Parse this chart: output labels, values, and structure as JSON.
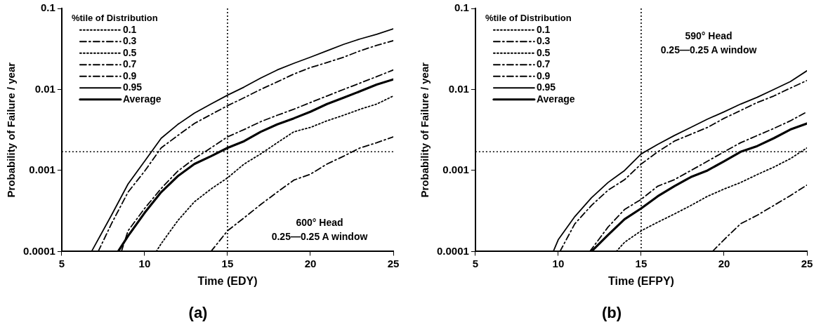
{
  "chart_data": [
    {
      "type": "line",
      "title": "(a)",
      "xlabel": "Time (EDY)",
      "ylabel": "Probability of Failure / year",
      "legend_title": "%tile of Distribution",
      "legend": "top left",
      "log": "y",
      "grid": false,
      "marker": "none",
      "xlim": [
        5,
        25
      ],
      "xticks": [
        5,
        10,
        15,
        20,
        25
      ],
      "ylim": [
        0.0001,
        0.1
      ],
      "yticks": [
        0.0001,
        0.001,
        0.01,
        0.1
      ],
      "annotations": [
        "600° Head",
        "0.25—0.25 A window"
      ],
      "ref_lines": [
        {
          "axis": "y",
          "value": 0.0017,
          "line_style": "dotted",
          "color": "#000000"
        },
        {
          "axis": "x",
          "value": 15,
          "line_style": "dotted",
          "color": "#000000"
        }
      ],
      "series": [
        {
          "name": "0.1",
          "color": "#000000",
          "line_style": "dotted"
        },
        {
          "name": "0.3",
          "color": "#000000",
          "line_style": "dashed",
          "x": [
            14,
            15,
            16,
            17,
            18,
            19,
            20,
            21,
            22,
            23,
            24,
            25
          ],
          "values": [
            0.0001,
            0.00018,
            0.00026,
            0.00038,
            0.00054,
            0.00076,
            0.0009,
            0.0012,
            0.0015,
            0.0019,
            0.0022,
            0.0026
          ]
        },
        {
          "name": "0.5",
          "color": "#000000",
          "line_style": "dotted",
          "x": [
            10.7,
            11,
            12,
            13,
            14,
            15,
            16,
            17,
            18,
            19,
            20,
            21,
            22,
            23,
            24,
            25
          ],
          "values": [
            0.0001,
            0.000125,
            0.00024,
            0.00041,
            0.00059,
            0.00081,
            0.0012,
            0.0016,
            0.0022,
            0.003,
            0.0034,
            0.0041,
            0.0048,
            0.0057,
            0.0066,
            0.0083
          ]
        },
        {
          "name": "0.7",
          "color": "#000000",
          "line_style": "dashed",
          "x": [
            8.6,
            9,
            10,
            11,
            12,
            13,
            14,
            15,
            16,
            17,
            18,
            19,
            20,
            21,
            22,
            23,
            24,
            25
          ],
          "values": [
            0.0001,
            0.00018,
            0.00034,
            0.0006,
            0.00098,
            0.0014,
            0.0019,
            0.0026,
            0.0032,
            0.004,
            0.0048,
            0.0057,
            0.0069,
            0.0083,
            0.01,
            0.012,
            0.0144,
            0.0174
          ]
        },
        {
          "name": "0.9",
          "color": "#000000",
          "line_style": "dashed",
          "x": [
            7.2,
            8,
            9,
            10,
            11,
            12,
            13,
            14,
            15,
            16,
            17,
            18,
            19,
            20,
            21,
            22,
            23,
            24,
            25
          ],
          "values": [
            0.0001,
            0.00022,
            0.00054,
            0.00098,
            0.0019,
            0.0027,
            0.0038,
            0.0049,
            0.0063,
            0.0079,
            0.01,
            0.0124,
            0.0155,
            0.0186,
            0.0215,
            0.025,
            0.03,
            0.035,
            0.04
          ]
        },
        {
          "name": "0.95",
          "color": "#000000",
          "line_style": "solid",
          "x": [
            6.8,
            8,
            9,
            10,
            11,
            12,
            13,
            14,
            15,
            16,
            17,
            18,
            19,
            20,
            21,
            22,
            23,
            24,
            25
          ],
          "values": [
            0.0001,
            0.00028,
            0.00068,
            0.0013,
            0.0025,
            0.0037,
            0.0051,
            0.0066,
            0.0085,
            0.0107,
            0.0138,
            0.0174,
            0.021,
            0.025,
            0.03,
            0.036,
            0.042,
            0.048,
            0.056
          ]
        },
        {
          "name": "Average",
          "color": "#000000",
          "line_style": "solid",
          "x": [
            8.4,
            9,
            10,
            11,
            12,
            13,
            14,
            15,
            16,
            17,
            18,
            19,
            20,
            21,
            22,
            23,
            24,
            25
          ],
          "values": [
            0.0001,
            0.000155,
            0.0003,
            0.00054,
            0.00085,
            0.0012,
            0.0015,
            0.0019,
            0.0023,
            0.003,
            0.0037,
            0.0044,
            0.0053,
            0.0066,
            0.0079,
            0.0095,
            0.0115,
            0.0133
          ]
        }
      ]
    },
    {
      "type": "line",
      "title": "(b)",
      "xlabel": "Time (EFPY)",
      "ylabel": "Probability of Failure / year",
      "legend_title": "%tile of Distribution",
      "legend": "top left",
      "log": "y",
      "grid": false,
      "marker": "none",
      "xlim": [
        5,
        25
      ],
      "xticks": [
        5,
        10,
        15,
        20,
        25
      ],
      "ylim": [
        0.0001,
        0.1
      ],
      "yticks": [
        0.0001,
        0.001,
        0.01,
        0.1
      ],
      "annotations": [
        "590° Head",
        "0.25—0.25 A window"
      ],
      "ref_lines": [
        {
          "axis": "y",
          "value": 0.0017,
          "line_style": "dotted",
          "color": "#000000"
        },
        {
          "axis": "x",
          "value": 15,
          "line_style": "dotted",
          "color": "#000000"
        }
      ],
      "series": [
        {
          "name": "0.1",
          "color": "#000000",
          "line_style": "dotted"
        },
        {
          "name": "0.3",
          "color": "#000000",
          "line_style": "dashed",
          "x": [
            19.3,
            20,
            21,
            22,
            23,
            24,
            25
          ],
          "values": [
            0.0001,
            0.00014,
            0.00022,
            0.00028,
            0.00037,
            0.00049,
            0.00066
          ]
        },
        {
          "name": "0.5",
          "color": "#000000",
          "line_style": "dotted",
          "x": [
            13.5,
            14,
            15,
            16,
            17,
            18,
            19,
            20,
            21,
            22,
            23,
            24,
            25
          ],
          "values": [
            0.0001,
            0.00013,
            0.00018,
            0.00023,
            0.00029,
            0.00037,
            0.00048,
            0.00059,
            0.00071,
            0.00089,
            0.0011,
            0.0014,
            0.0019
          ]
        },
        {
          "name": "0.7",
          "color": "#000000",
          "line_style": "dashed",
          "x": [
            11.9,
            13,
            14,
            15,
            16,
            17,
            18,
            19,
            20,
            21,
            22,
            23,
            24,
            25
          ],
          "values": [
            0.0001,
            0.0002,
            0.00033,
            0.00044,
            0.00064,
            0.00077,
            0.001,
            0.0013,
            0.0017,
            0.0022,
            0.0027,
            0.0033,
            0.0041,
            0.0053
          ]
        },
        {
          "name": "0.9",
          "color": "#000000",
          "line_style": "dashed",
          "x": [
            10.1,
            11,
            12,
            13,
            14,
            15,
            16,
            17,
            18,
            19,
            20,
            21,
            22,
            23,
            24,
            25
          ],
          "values": [
            0.0001,
            0.00022,
            0.00037,
            0.00057,
            0.00077,
            0.0012,
            0.0017,
            0.0023,
            0.0028,
            0.0034,
            0.0044,
            0.0055,
            0.0069,
            0.0083,
            0.0104,
            0.0129
          ]
        },
        {
          "name": "0.95",
          "color": "#000000",
          "line_style": "solid",
          "x": [
            9.7,
            10,
            11,
            12,
            13,
            14,
            15,
            16,
            17,
            18,
            19,
            20,
            21,
            22,
            23,
            24,
            25
          ],
          "values": [
            0.0001,
            0.00014,
            0.00027,
            0.00046,
            0.00071,
            0.001,
            0.0016,
            0.0021,
            0.0027,
            0.0034,
            0.0043,
            0.0053,
            0.0066,
            0.008,
            0.01,
            0.0125,
            0.017
          ]
        },
        {
          "name": "Average",
          "color": "#000000",
          "line_style": "solid",
          "x": [
            12,
            13,
            14,
            15,
            16,
            17,
            18,
            19,
            20,
            21,
            22,
            23,
            24,
            25
          ],
          "values": [
            0.0001,
            0.00016,
            0.00025,
            0.00034,
            0.00048,
            0.00064,
            0.00083,
            0.001,
            0.0013,
            0.0017,
            0.002,
            0.0025,
            0.0032,
            0.0038
          ]
        }
      ]
    }
  ]
}
